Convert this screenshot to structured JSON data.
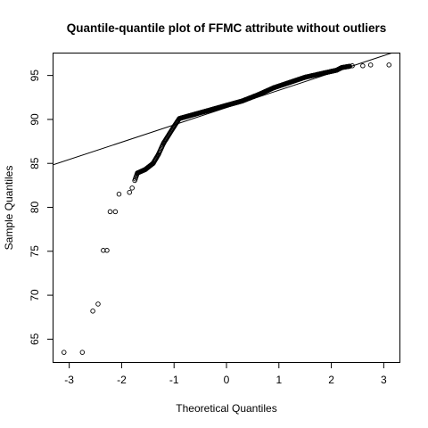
{
  "chart_data": {
    "type": "scatter",
    "title": "Quantile-quantile plot of FFMC attribute without outliers",
    "xlabel": "Theoretical Quantiles",
    "ylabel": "Sample Quantiles",
    "xlim": [
      -3.3,
      3.3
    ],
    "ylim": [
      62.4,
      97.5
    ],
    "xticks": [
      -3,
      -2,
      -1,
      0,
      1,
      2,
      3
    ],
    "yticks": [
      65,
      70,
      75,
      80,
      85,
      90,
      95
    ],
    "grid": false,
    "legend": "none",
    "reference_line": {
      "x": [
        -3.3,
        3.3
      ],
      "y": [
        84.85,
        97.85
      ]
    },
    "knots": [
      [
        -3.1,
        63.5
      ],
      [
        -2.75,
        63.5
      ],
      [
        -2.55,
        68.2
      ],
      [
        -2.45,
        69.0
      ],
      [
        -2.35,
        75.1
      ],
      [
        -2.28,
        75.1
      ],
      [
        -2.22,
        79.5
      ],
      [
        -2.12,
        79.5
      ],
      [
        -2.05,
        81.5
      ],
      [
        -1.85,
        81.7
      ],
      [
        -1.8,
        82.2
      ],
      [
        -1.7,
        83.9
      ],
      [
        -1.55,
        84.3
      ],
      [
        -1.4,
        85.0
      ],
      [
        -1.3,
        86.0
      ],
      [
        -1.2,
        87.3
      ],
      [
        -1.0,
        89.2
      ],
      [
        -0.9,
        90.1
      ],
      [
        -0.6,
        90.6
      ],
      [
        -0.3,
        91.1
      ],
      [
        0.0,
        91.6
      ],
      [
        0.3,
        92.1
      ],
      [
        0.6,
        92.8
      ],
      [
        0.9,
        93.6
      ],
      [
        1.2,
        94.2
      ],
      [
        1.5,
        94.8
      ],
      [
        1.8,
        95.2
      ],
      [
        2.1,
        95.6
      ],
      [
        2.2,
        95.9
      ],
      [
        2.4,
        96.1
      ],
      [
        2.6,
        96.1
      ],
      [
        2.75,
        96.2
      ],
      [
        3.1,
        96.2
      ]
    ],
    "n_points": 400
  }
}
